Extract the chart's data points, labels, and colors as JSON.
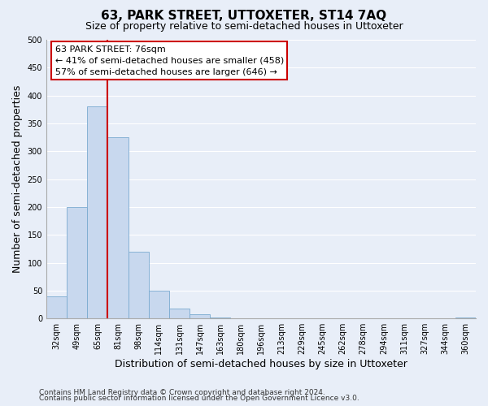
{
  "title": "63, PARK STREET, UTTOXETER, ST14 7AQ",
  "subtitle": "Size of property relative to semi-detached houses in Uttoxeter",
  "xlabel": "Distribution of semi-detached houses by size in Uttoxeter",
  "ylabel": "Number of semi-detached properties",
  "footnote1": "Contains HM Land Registry data © Crown copyright and database right 2024.",
  "footnote2": "Contains public sector information licensed under the Open Government Licence v3.0.",
  "bar_labels": [
    "32sqm",
    "49sqm",
    "65sqm",
    "81sqm",
    "98sqm",
    "114sqm",
    "131sqm",
    "147sqm",
    "163sqm",
    "180sqm",
    "196sqm",
    "213sqm",
    "229sqm",
    "245sqm",
    "262sqm",
    "278sqm",
    "294sqm",
    "311sqm",
    "327sqm",
    "344sqm",
    "360sqm"
  ],
  "bar_values": [
    40,
    200,
    380,
    325,
    120,
    50,
    18,
    7,
    2,
    0,
    0,
    0,
    1,
    0,
    1,
    0,
    0,
    0,
    0,
    0,
    2
  ],
  "bar_color": "#c8d8ee",
  "bar_edge_color": "#7aaad0",
  "ylim": [
    0,
    500
  ],
  "yticks": [
    0,
    50,
    100,
    150,
    200,
    250,
    300,
    350,
    400,
    450,
    500
  ],
  "vline_color": "#cc0000",
  "annotation_title": "63 PARK STREET: 76sqm",
  "annotation_line1": "← 41% of semi-detached houses are smaller (458)",
  "annotation_line2": "57% of semi-detached houses are larger (646) →",
  "background_color": "#e8eef8",
  "grid_color": "#ffffff",
  "title_fontsize": 11,
  "subtitle_fontsize": 9,
  "axis_label_fontsize": 9,
  "tick_fontsize": 7,
  "annotation_fontsize": 8,
  "footnote_fontsize": 6.5
}
